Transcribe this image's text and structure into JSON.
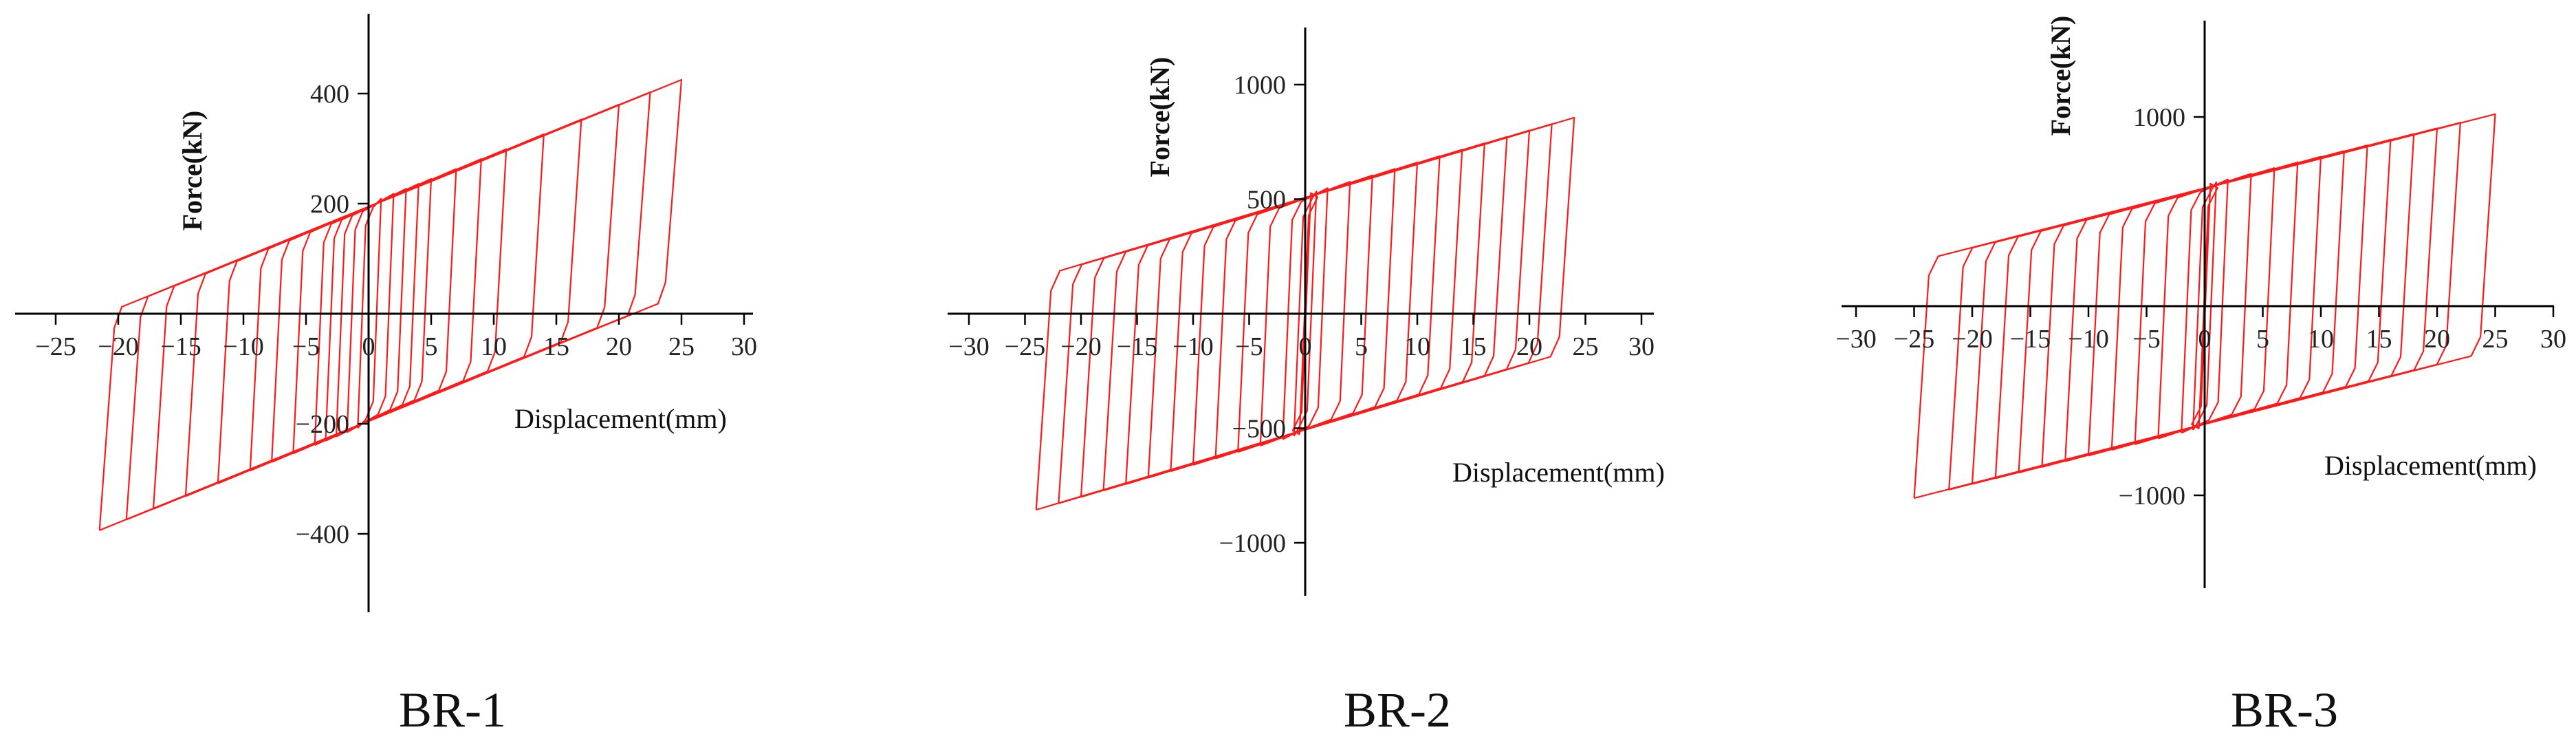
{
  "colors": {
    "curve": "#ff1a1a",
    "axis": "#000000"
  },
  "chart_data": [
    {
      "type": "line",
      "caption": "BR-1",
      "xlabel": "Displacement(mm)",
      "ylabel": "Force(kN)",
      "xlim": [
        -28,
        30
      ],
      "ylim": [
        -490,
        500
      ],
      "xticks": [
        -25,
        -20,
        -15,
        -10,
        -5,
        0,
        5,
        10,
        15,
        20,
        25,
        30
      ],
      "yticks": [
        -400,
        -200,
        0,
        200,
        400
      ],
      "yield_force": 200,
      "hardening_slope": 9,
      "yield_displacement": 0.3,
      "amplitudes": [
        1,
        2,
        3,
        4,
        5,
        7,
        9,
        11,
        14,
        17,
        20,
        22.5,
        25
      ],
      "neg_amplitude_max": -21.5,
      "pos_peak": [
        25,
        413
      ],
      "neg_peak": [
        -21.5,
        -380
      ]
    },
    {
      "type": "line",
      "caption": "BR-2",
      "xlabel": "Displacement(mm)",
      "ylabel": "Force(kN)",
      "xlim": [
        -30,
        30
      ],
      "ylim": [
        -1230,
        1230
      ],
      "xticks": [
        -30,
        -25,
        -20,
        -15,
        -10,
        -5,
        0,
        5,
        10,
        15,
        20,
        25,
        30
      ],
      "yticks": [
        -1000,
        -500,
        0,
        500,
        1000
      ],
      "yield_force": 520,
      "hardening_slope": 14,
      "yield_displacement": 0.4,
      "amplitudes": [
        0.5,
        1,
        2,
        4,
        6,
        8,
        10,
        12,
        14,
        16,
        18,
        20,
        22,
        24
      ],
      "neg_amplitude_max": -25,
      "pos_peak": [
        24.3,
        865
      ],
      "neg_peak": [
        -25,
        -880
      ]
    },
    {
      "type": "line",
      "caption": "BR-3",
      "xlabel": "Displacement(mm)",
      "ylabel": "Force(kN)",
      "xlim": [
        -30,
        30
      ],
      "ylim": [
        -1420,
        1420
      ],
      "xticks": [
        -30,
        -25,
        -20,
        -15,
        -10,
        -5,
        0,
        5,
        10,
        15,
        20,
        25,
        30
      ],
      "yticks": [
        -1000,
        0,
        1000
      ],
      "yield_force": 640,
      "hardening_slope": 15,
      "yield_displacement": 0.4,
      "amplitudes": [
        0.5,
        1,
        2,
        4,
        6,
        8,
        10,
        12,
        14,
        16,
        18,
        20,
        22,
        25
      ],
      "neg_amplitude_max": -25,
      "pos_peak": [
        25,
        1020
      ],
      "neg_peak": [
        -25,
        -1020
      ]
    }
  ]
}
